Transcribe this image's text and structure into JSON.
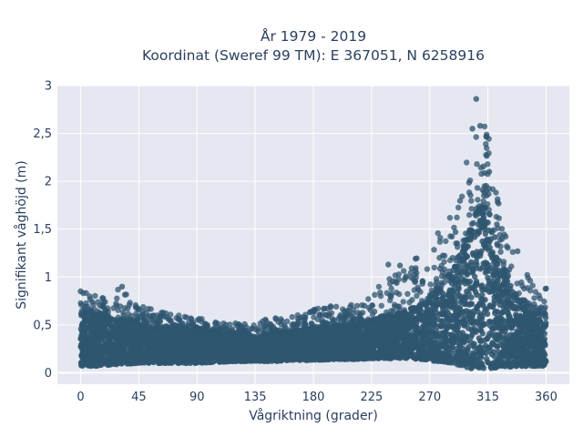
{
  "chart_data": {
    "type": "scatter",
    "title_lines": [
      "År 1979 - 2019",
      "Koordinat (Sweref 99 TM): E 367051, N 6258916"
    ],
    "xlabel": "Vågriktning (grader)",
    "ylabel": "Signifikant våghöjd (m)",
    "xlim": [
      -18,
      378
    ],
    "ylim": [
      -0.12,
      3.0
    ],
    "x_ticks": [
      0,
      45,
      90,
      135,
      180,
      225,
      270,
      315,
      360
    ],
    "x_tick_labels": [
      "0",
      "45",
      "90",
      "135",
      "180",
      "225",
      "270",
      "315",
      "360"
    ],
    "y_ticks": [
      0,
      0.5,
      1,
      1.5,
      2,
      2.5,
      3
    ],
    "y_tick_labels": [
      "0",
      "0,5",
      "1",
      "1,5",
      "2",
      "2,5",
      "3"
    ],
    "grid": true,
    "legend": "none",
    "marker_color": "#2f5670",
    "plot_bg": "#e5e8f0",
    "series": [
      {
        "values_description_note": "",
        "envelope": {
          "x": [
            0,
            10,
            20,
            30,
            45,
            60,
            75,
            90,
            105,
            120,
            135,
            150,
            165,
            180,
            195,
            210,
            225,
            240,
            255,
            265,
            275,
            285,
            295,
            300,
            305,
            310,
            315,
            320,
            325,
            330,
            340,
            350,
            360
          ],
          "y_low": [
            0.07,
            0.07,
            0.08,
            0.09,
            0.1,
            0.1,
            0.1,
            0.1,
            0.11,
            0.12,
            0.12,
            0.12,
            0.13,
            0.13,
            0.14,
            0.14,
            0.15,
            0.15,
            0.15,
            0.14,
            0.12,
            0.1,
            0.07,
            0.05,
            0.04,
            0.04,
            0.04,
            0.05,
            0.05,
            0.06,
            0.07,
            0.07,
            0.07
          ],
          "y_dense_high": [
            0.62,
            0.6,
            0.6,
            0.55,
            0.5,
            0.48,
            0.45,
            0.43,
            0.4,
            0.38,
            0.38,
            0.4,
            0.43,
            0.46,
            0.48,
            0.5,
            0.54,
            0.58,
            0.65,
            0.72,
            0.85,
            1.0,
            1.25,
            1.45,
            1.6,
            1.75,
            1.7,
            1.45,
            1.2,
            1.0,
            0.7,
            0.62,
            0.62
          ],
          "y_max": [
            0.85,
            0.82,
            0.8,
            0.9,
            0.7,
            0.66,
            0.6,
            0.58,
            0.55,
            0.52,
            0.55,
            0.58,
            0.6,
            0.68,
            0.7,
            0.72,
            0.82,
            1.13,
            1.15,
            1.3,
            1.45,
            1.6,
            2.05,
            2.3,
            2.55,
            2.86,
            2.58,
            2.3,
            1.55,
            1.45,
            1.15,
            0.95,
            0.88
          ]
        }
      }
    ],
    "highlighted_points": [
      {
        "x": 0,
        "y": 0.85
      },
      {
        "x": 32,
        "y": 0.9
      },
      {
        "x": 238,
        "y": 1.13
      },
      {
        "x": 247,
        "y": 1.12
      },
      {
        "x": 290,
        "y": 1.47
      },
      {
        "x": 303,
        "y": 2.55
      },
      {
        "x": 306,
        "y": 2.86
      },
      {
        "x": 309,
        "y": 2.58
      },
      {
        "x": 316,
        "y": 2.1
      },
      {
        "x": 322,
        "y": 1.55
      },
      {
        "x": 338,
        "y": 1.27
      },
      {
        "x": 360,
        "y": 0.88
      }
    ]
  }
}
